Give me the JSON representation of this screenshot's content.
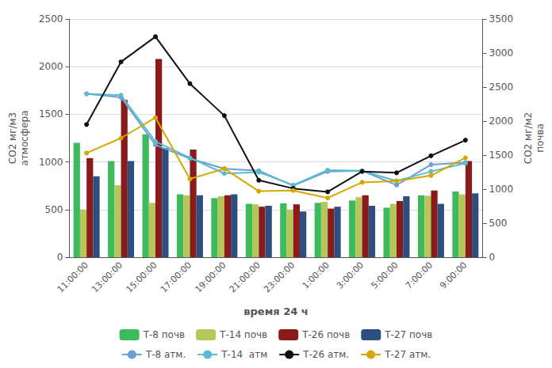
{
  "chart_data": {
    "type": "bar",
    "xlabel": "время 24 ч",
    "ylabel": "CO2 мг/м3\nатмосфера",
    "y2label": "CO2 мг/м2\nпочва",
    "categories": [
      "11:00:00",
      "13:00:00",
      "15:00:00",
      "17:00:00",
      "19:00:00",
      "21:00:00",
      "23:00:00",
      "1:00:00",
      "3:00:00",
      "5:00:00",
      "7:00:00",
      "9:00:00"
    ],
    "series": [
      {
        "name": "Т-8 почв",
        "type": "bar",
        "color": "#3dba5c",
        "values": [
          1200,
          1010,
          1290,
          660,
          620,
          560,
          565,
          570,
          595,
          520,
          650,
          690
        ]
      },
      {
        "name": "Т-14 почв",
        "type": "bar",
        "color": "#b5c75a",
        "values": [
          500,
          755,
          570,
          650,
          640,
          555,
          500,
          580,
          630,
          560,
          645,
          660
        ]
      },
      {
        "name": "Т-26 почв",
        "type": "bar",
        "color": "#8b1a1a",
        "values": [
          1040,
          1650,
          2080,
          1130,
          650,
          530,
          555,
          510,
          650,
          590,
          700,
          1010
        ]
      },
      {
        "name": "Т-27 почв",
        "type": "bar",
        "color": "#2d4f7f",
        "values": [
          850,
          1010,
          1145,
          650,
          660,
          540,
          480,
          530,
          540,
          640,
          560,
          670
        ]
      },
      {
        "name": "Т-8 атм.",
        "type": "line",
        "axis": "y2",
        "marker": "circle",
        "color": "#6a9fd8",
        "values": [
          2400,
          2350,
          1650,
          1450,
          1300,
          1270,
          1050,
          1260,
          1270,
          1060,
          1360,
          1390
        ]
      },
      {
        "name": "Т-14  атм",
        "type": "line",
        "axis": "y2",
        "marker": "circle",
        "color": "#5bbccc",
        "values": [
          2400,
          2380,
          1700,
          1460,
          1230,
          1250,
          1060,
          1280,
          1270,
          1120,
          1260,
          1380
        ]
      },
      {
        "name": "Т-26 атм.",
        "type": "line",
        "axis": "y2",
        "marker": "circle",
        "color": "#111111",
        "values": [
          1950,
          2870,
          3240,
          2550,
          2080,
          1130,
          1010,
          960,
          1260,
          1240,
          1490,
          1720
        ]
      },
      {
        "name": "Т-27 атм.",
        "type": "line",
        "axis": "y2",
        "marker": "circle",
        "color": "#d4a800",
        "values": [
          1530,
          1750,
          2050,
          1150,
          1300,
          970,
          980,
          870,
          1100,
          1120,
          1200,
          1460
        ]
      }
    ],
    "ylim": [
      0,
      2500
    ],
    "yticks": [
      0,
      500,
      1000,
      1500,
      2000,
      2500
    ],
    "y2lim": [
      0,
      3500
    ],
    "y2ticks": [
      0,
      500,
      1000,
      1500,
      2000,
      2500,
      3000,
      3500
    ],
    "grid": true,
    "legend": "bottom"
  }
}
